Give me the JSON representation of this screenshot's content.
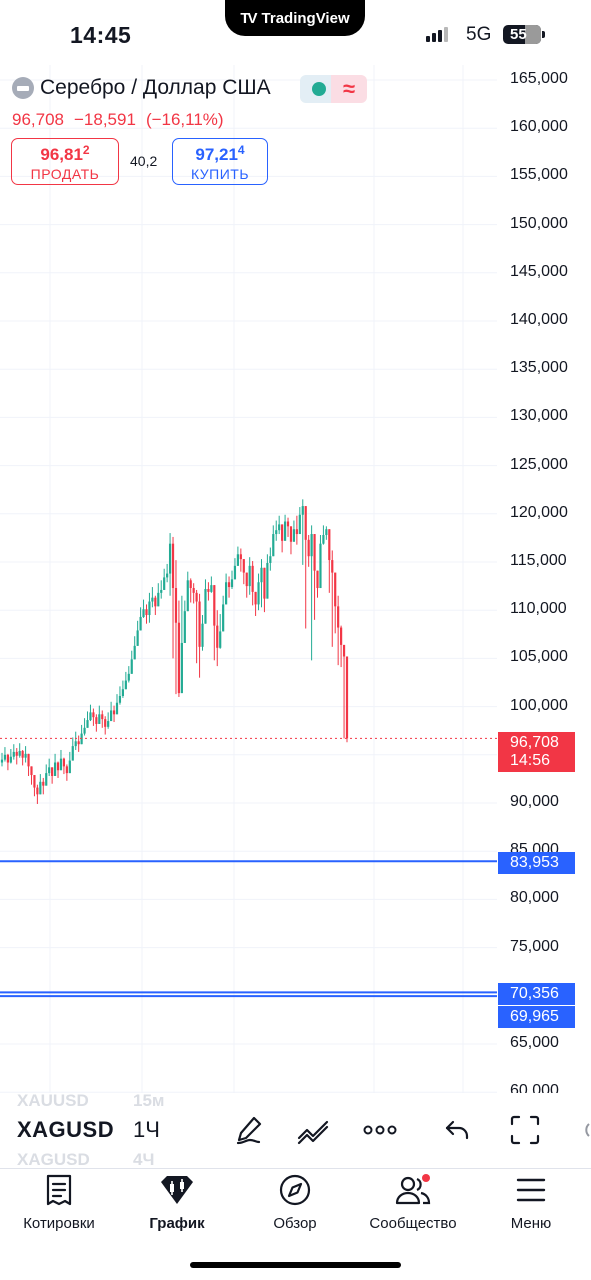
{
  "status_bar": {
    "time": "14:45",
    "app_name": "TradingView",
    "network": "5G",
    "battery": "55"
  },
  "header": {
    "symbol_name": "Серебро / Доллар США",
    "last_price": "96,708",
    "change": "−18,591",
    "change_pct": "(−16,11%)",
    "sell": {
      "price_main": "96,81",
      "price_small": "2",
      "label": "ПРОДАТЬ"
    },
    "buy": {
      "price_main": "97,21",
      "price_small": "4",
      "label": "КУПИТЬ"
    },
    "spread": "40,2",
    "wave_icon": "≈"
  },
  "price_scale": {
    "labels": [
      "165,000",
      "160,000",
      "155,000",
      "150,000",
      "145,000",
      "140,000",
      "135,000",
      "130,000",
      "125,000",
      "120,000",
      "115,000",
      "110,000",
      "105,000",
      "100,000",
      "90,000",
      "85,000",
      "80,000",
      "75,000",
      "65,000",
      "60,000"
    ],
    "last_tag": {
      "price": "96,708",
      "countdown": "14:56"
    },
    "lines": [
      {
        "name": "line-upper",
        "price": "83,953"
      },
      {
        "name": "line-lower-a",
        "price": "70,356"
      },
      {
        "name": "line-lower-b",
        "price": "69,965"
      }
    ]
  },
  "chart_data": {
    "type": "candlestick",
    "symbol": "XAGUSD",
    "interval": "1Ч",
    "ylim": [
      58000,
      167000
    ],
    "closes": [
      94500,
      95000,
      94200,
      94800,
      95300,
      94900,
      95400,
      94700,
      95100,
      93800,
      92900,
      91600,
      90900,
      92200,
      91800,
      93100,
      93700,
      92800,
      94200,
      93400,
      94600,
      93800,
      93100,
      94400,
      95900,
      96400,
      96100,
      97200,
      97800,
      98600,
      99400,
      98900,
      98200,
      99200,
      98700,
      97900,
      98500,
      99600,
      99200,
      100400,
      101100,
      101800,
      102700,
      103400,
      104900,
      106300,
      107900,
      109300,
      110100,
      109500,
      110900,
      111300,
      110400,
      111800,
      112100,
      113400,
      113800,
      116900,
      112300,
      108700,
      101400,
      106600,
      109900,
      113100,
      112300,
      111800,
      110900,
      106200,
      108600,
      112200,
      111900,
      112600,
      108400,
      106100,
      107800,
      110600,
      112900,
      112400,
      113200,
      114600,
      115800,
      115300,
      113900,
      112500,
      114600,
      111900,
      110600,
      112900,
      114400,
      111200,
      114900,
      115600,
      117900,
      118300,
      118900,
      117200,
      119200,
      118700,
      117100,
      118400,
      117900,
      119900,
      120800,
      117300,
      115600,
      117900,
      114100,
      112300,
      116900,
      117800,
      118400,
      115200,
      113900,
      110400,
      108200,
      106400,
      105200,
      96708
    ],
    "lows": [
      93800,
      94300,
      93400,
      94100,
      94500,
      94000,
      94700,
      93900,
      94200,
      92800,
      91900,
      90700,
      89900,
      91400,
      90900,
      92300,
      92800,
      92000,
      93300,
      92600,
      93800,
      93000,
      92300,
      93500,
      95000,
      95500,
      95300,
      96400,
      97000,
      97800,
      98500,
      98000,
      97400,
      98300,
      97800,
      97100,
      97700,
      98700,
      98400,
      99500,
      100200,
      100900,
      101900,
      102500,
      104000,
      105400,
      107000,
      108300,
      109200,
      108600,
      108700,
      110300,
      109500,
      110800,
      111200,
      112500,
      112900,
      111500,
      105000,
      101300,
      101000,
      103700,
      108900,
      111500,
      110800,
      110700,
      104500,
      103000,
      105800,
      110600,
      111000,
      111800,
      104800,
      104200,
      106000,
      108900,
      111800,
      111300,
      112200,
      113500,
      114900,
      114000,
      112700,
      111300,
      111600,
      110500,
      109400,
      110000,
      110300,
      109800,
      113200,
      114100,
      116800,
      117200,
      117900,
      116000,
      117800,
      117600,
      115800,
      117400,
      116800,
      118700,
      114700,
      108100,
      114500,
      104800,
      109000,
      111300,
      115800,
      116800,
      117300,
      111800,
      106200,
      107600,
      104300,
      104100,
      96700,
      96300
    ],
    "highs": [
      95200,
      95800,
      95100,
      95600,
      96100,
      95700,
      96200,
      95500,
      95900,
      95000,
      93700,
      92400,
      91900,
      93000,
      92600,
      94000,
      94600,
      93600,
      95100,
      94300,
      95500,
      94700,
      94000,
      95300,
      96800,
      97400,
      97000,
      98100,
      98800,
      99500,
      100200,
      99800,
      99200,
      100100,
      99600,
      99000,
      99400,
      100500,
      100100,
      101300,
      102100,
      102700,
      103600,
      104200,
      105800,
      107300,
      108900,
      110300,
      111100,
      110600,
      111800,
      112400,
      111500,
      112800,
      113100,
      114300,
      114800,
      118000,
      117600,
      115200,
      111000,
      111500,
      111000,
      114000,
      113300,
      112800,
      112100,
      111700,
      109500,
      113200,
      112900,
      113500,
      112500,
      110000,
      109600,
      111500,
      113800,
      113500,
      114100,
      115400,
      116600,
      116400,
      114900,
      113700,
      115500,
      115100,
      111800,
      113800,
      115300,
      113600,
      115800,
      116500,
      118800,
      119300,
      119800,
      118500,
      119900,
      119600,
      118400,
      119300,
      119800,
      120700,
      121500,
      119800,
      117800,
      118800,
      115800,
      113900,
      117800,
      118800,
      118700,
      117800,
      116200,
      112500,
      111500,
      108400,
      106300,
      105000
    ],
    "colors": {
      "up": "#22ab94",
      "down": "#f23645",
      "line_blue": "#2962ff",
      "last_price": "#f23645"
    }
  },
  "toolbar": {
    "symbol": "XAGUSD",
    "interval": "1Ч",
    "ghost_symbol_above": "XAUUSD",
    "ghost_interval_above": "15м",
    "ghost_symbol_below": "XAGUSD",
    "ghost_interval_below": "4Ч",
    "icons": [
      "pen-icon",
      "trend-line-icon",
      "more-icon",
      "undo-icon",
      "fullscreen-icon"
    ]
  },
  "bottom_nav": {
    "items": [
      {
        "label": "Котировки",
        "icon": "watchlist-icon"
      },
      {
        "label": "График",
        "icon": "chart-icon"
      },
      {
        "label": "Обзор",
        "icon": "compass-icon"
      },
      {
        "label": "Сообщество",
        "icon": "community-icon"
      },
      {
        "label": "Меню",
        "icon": "menu-icon"
      }
    ],
    "active": "График"
  }
}
